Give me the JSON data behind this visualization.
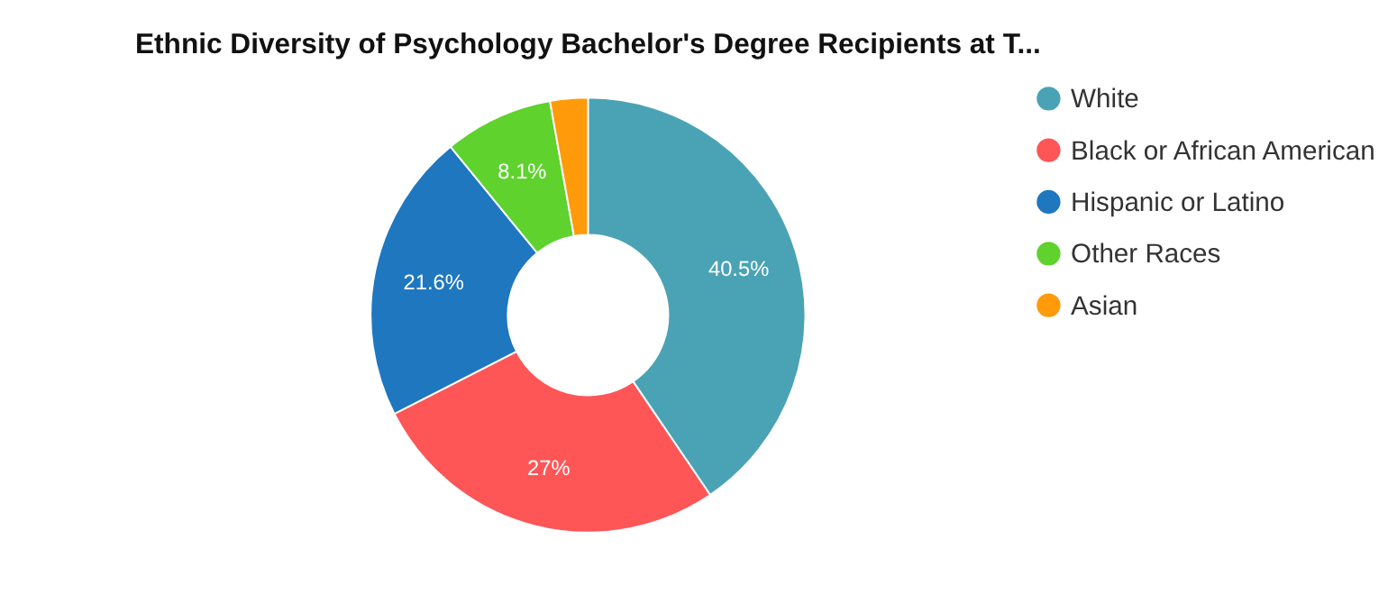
{
  "chart_data": {
    "type": "donut",
    "title": "Ethnic Diversity of Psychology Bachelor's Degree Recipients at T...",
    "categories": [
      "White",
      "Black or African American",
      "Hispanic or Latino",
      "Other Races",
      "Asian"
    ],
    "values": [
      40.5,
      27,
      21.6,
      8.1,
      2.8
    ],
    "colors": [
      "#4aa3b5",
      "#fe5557",
      "#1f77c0",
      "#5fd22e",
      "#ff9a0a"
    ],
    "value_labels": [
      "40.5%",
      "27%",
      "21.6%",
      "8.1%",
      null
    ],
    "legend": "right"
  }
}
